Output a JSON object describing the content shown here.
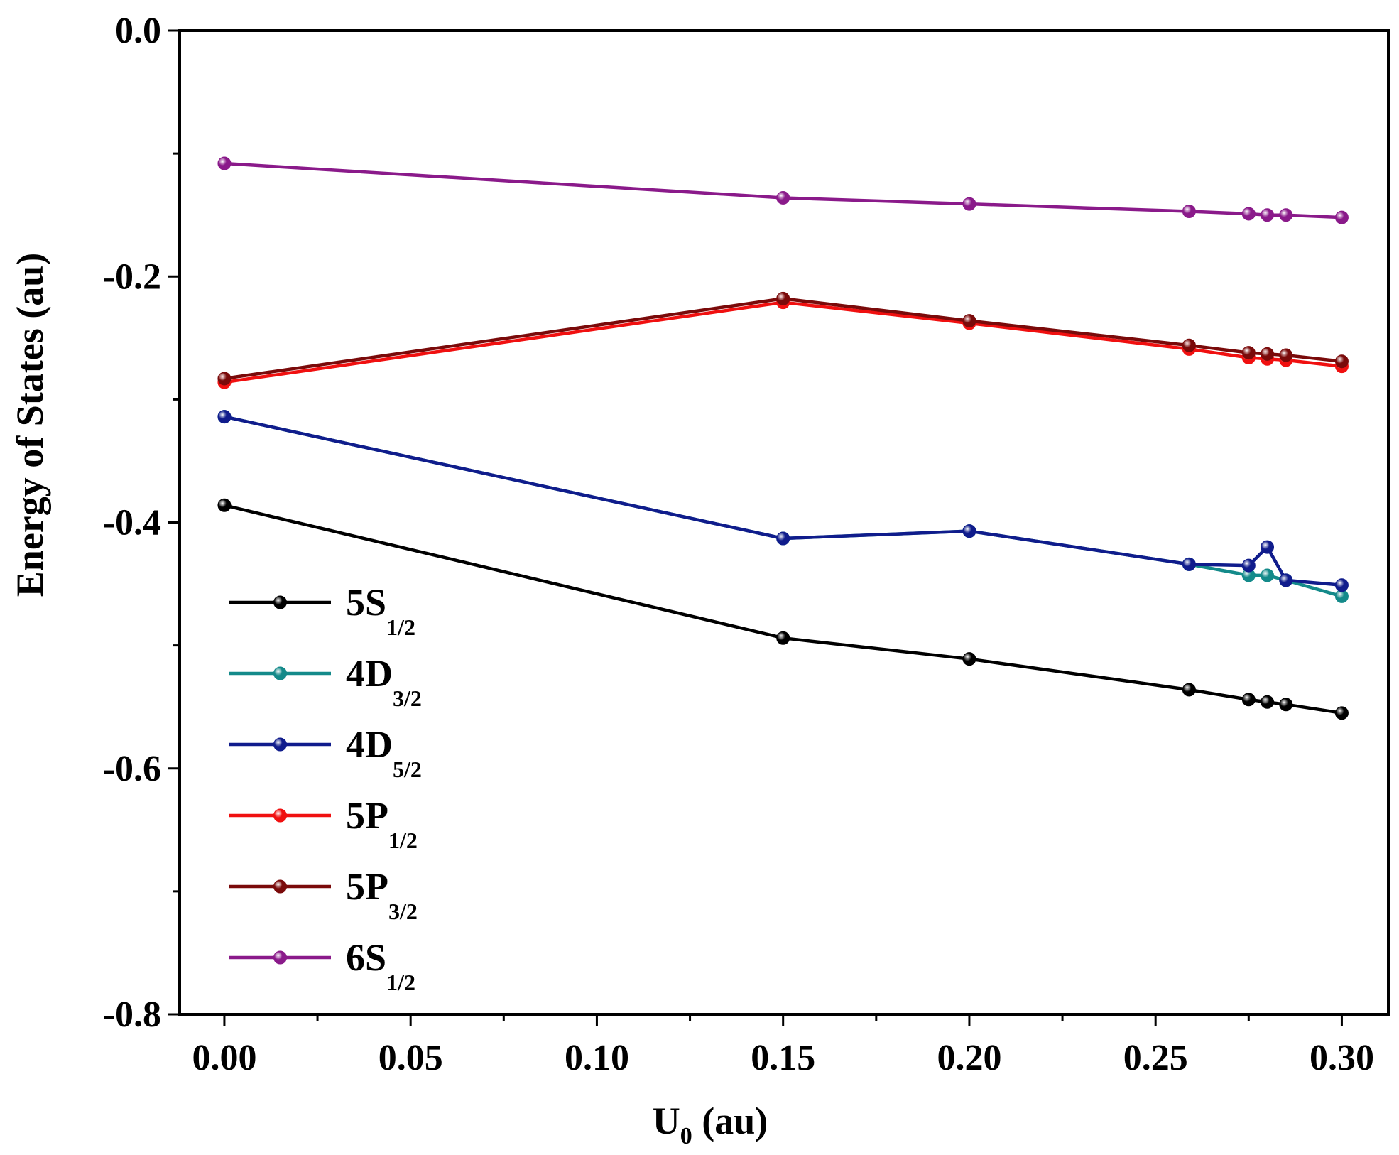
{
  "chart_data": {
    "type": "line",
    "title": "",
    "xlabel": "U",
    "xlabel_sub": "0",
    "xlabel_unit": " (au)",
    "ylabel": "Energy of States (au)",
    "xlim": [
      -0.012,
      0.3125
    ],
    "ylim": [
      -0.8,
      0.0
    ],
    "xticks": [
      0.0,
      0.05,
      0.1,
      0.15,
      0.2,
      0.25,
      0.3
    ],
    "xtick_labels": [
      "0.00",
      "0.05",
      "0.10",
      "0.15",
      "0.20",
      "0.25",
      "0.30"
    ],
    "yticks": [
      0.0,
      -0.2,
      -0.4,
      -0.6,
      -0.8
    ],
    "ytick_labels": [
      "0.0",
      "-0.2",
      "-0.4",
      "-0.6",
      "-0.8"
    ],
    "legend_position": "bottom-left",
    "x": [
      0.0,
      0.15,
      0.2,
      0.259,
      0.275,
      0.28,
      0.285,
      0.3
    ],
    "series": [
      {
        "name": "5S",
        "sub": "1/2",
        "color": "#000000",
        "values": [
          -0.386,
          -0.494,
          -0.511,
          -0.536,
          -0.544,
          -0.546,
          -0.548,
          -0.555
        ]
      },
      {
        "name": "4D",
        "sub": "3/2",
        "color": "#148A8A",
        "values": [
          -0.314,
          -0.413,
          -0.407,
          -0.434,
          -0.443,
          -0.443,
          -0.447,
          -0.46
        ]
      },
      {
        "name": "4D",
        "sub": "5/2",
        "color": "#101C8C",
        "values": [
          -0.314,
          -0.413,
          -0.407,
          -0.434,
          -0.435,
          -0.42,
          -0.447,
          -0.451
        ]
      },
      {
        "name": "5P",
        "sub": "1/2",
        "color": "#F01010",
        "values": [
          -0.286,
          -0.221,
          -0.238,
          -0.259,
          -0.266,
          -0.267,
          -0.268,
          -0.273
        ]
      },
      {
        "name": "5P",
        "sub": "3/2",
        "color": "#7A0A0A",
        "values": [
          -0.283,
          -0.218,
          -0.236,
          -0.256,
          -0.262,
          -0.263,
          -0.264,
          -0.269
        ]
      },
      {
        "name": "6S",
        "sub": "1/2",
        "color": "#8A1A8A",
        "values": [
          -0.108,
          -0.136,
          -0.141,
          -0.147,
          -0.149,
          -0.15,
          -0.15,
          -0.152
        ]
      }
    ]
  }
}
